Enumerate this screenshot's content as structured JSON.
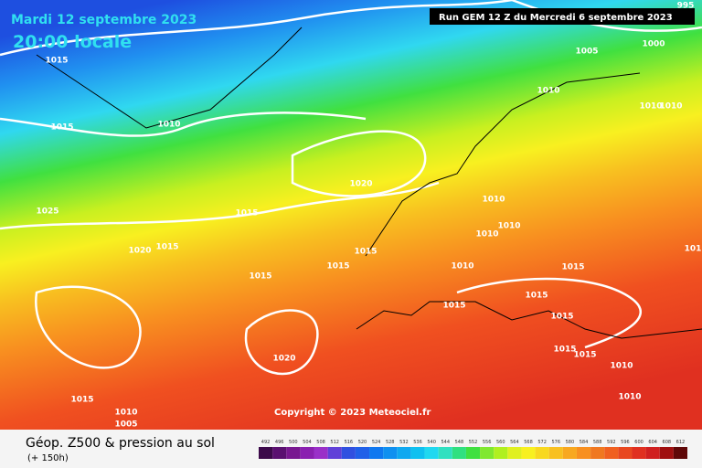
{
  "header": {
    "date": "Mardi 12 septembre 2023",
    "time": "20:00 locale",
    "run": "Run GEM 12 Z du Mercredi 6 septembre 2023"
  },
  "isobars": [
    "995",
    "1000",
    "1005",
    "1010",
    "1010",
    "1010",
    "1015",
    "1015",
    "1010",
    "1020",
    "1025",
    "1015",
    "1010",
    "1010",
    "1020",
    "1015",
    "1015",
    "1015",
    "1015",
    "1010",
    "1010",
    "1015",
    "101",
    "1015",
    "1015",
    "1015",
    "1015",
    "1015",
    "1010",
    "1020",
    "1010",
    "1015",
    "1010",
    "1005"
  ],
  "copyright": "Copyright © 2023 Meteociel.fr",
  "footer": {
    "title": "Géop. Z500 & pression au sol",
    "lead": "(+ 150h)"
  },
  "legend": {
    "values": [
      492,
      496,
      500,
      504,
      508,
      512,
      516,
      520,
      524,
      528,
      532,
      536,
      540,
      544,
      548,
      552,
      556,
      560,
      564,
      568,
      572,
      576,
      580,
      584,
      588,
      592,
      596,
      600,
      604,
      608,
      612
    ],
    "colors": [
      "#3c0a4a",
      "#5a1070",
      "#781890",
      "#8a20b0",
      "#9a30c8",
      "#6040d8",
      "#3050e0",
      "#2060e8",
      "#1078f0",
      "#1090f0",
      "#10a8f0",
      "#10c0f0",
      "#20d8f0",
      "#30e0c0",
      "#30e080",
      "#40e040",
      "#80e830",
      "#b0f020",
      "#e0f020",
      "#f8f020",
      "#f8d820",
      "#f8c020",
      "#f8a820",
      "#f89020",
      "#f07820",
      "#f06020",
      "#e84820",
      "#e03020",
      "#d02020",
      "#a01010",
      "#600808"
    ]
  }
}
